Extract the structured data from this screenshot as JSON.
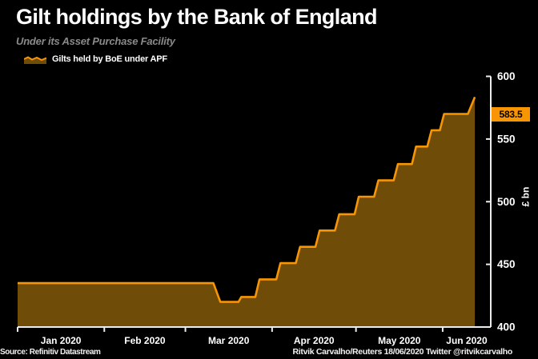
{
  "header": {
    "title": "Gilt holdings by the Bank of England",
    "subtitle": "Under its Asset Purchase Facility"
  },
  "legend": {
    "label": "Gilts held by BoE under APF",
    "marker": "area-sparkline-icon"
  },
  "footer": {
    "source": "Source: Refinitiv Datastream",
    "credit": "Ritvik Carvalho/Reuters 18/06/2020 Twitter @ritvikcarvalho"
  },
  "colors": {
    "background": "#000000",
    "line": "#f79502",
    "fill": "#6f4c08",
    "axis": "#ededed",
    "text": "#ffffff",
    "subtitle": "#8a8a8a",
    "badge_bg": "#f79502",
    "badge_text": "#000000"
  },
  "chart_data": {
    "type": "area",
    "title": "Gilt holdings by the Bank of England",
    "subtitle": "Under its Asset Purchase Facility",
    "ylabel": "£ bn",
    "ylim": [
      400,
      600
    ],
    "y_ticks": [
      400,
      450,
      500,
      550,
      600
    ],
    "y_axis_side": "right",
    "grid": false,
    "legend_position": "top-left",
    "x_unit": "days since 2020-01-01",
    "xlim_days": [
      0,
      169.2
    ],
    "x_tick_days": [
      0,
      31,
      60,
      91,
      121,
      152
    ],
    "x_tick_labels": [
      "Jan 2020",
      "Feb 2020",
      "Mar 2020",
      "Apr 2020",
      "May 2020",
      "Jun 2020"
    ],
    "last_value": 583.5,
    "last_value_label": "583.5",
    "series": [
      {
        "name": "Gilts held by BoE under APF",
        "unit": "£ bn",
        "points_day_value": [
          [
            0,
            435
          ],
          [
            70,
            435
          ],
          [
            72.5,
            420
          ],
          [
            79,
            420
          ],
          [
            80,
            424
          ],
          [
            85,
            424
          ],
          [
            86.5,
            438
          ],
          [
            92.5,
            438
          ],
          [
            94,
            451
          ],
          [
            99.5,
            451
          ],
          [
            101,
            464
          ],
          [
            106.5,
            464
          ],
          [
            108,
            477
          ],
          [
            113.5,
            477
          ],
          [
            115,
            490
          ],
          [
            120.5,
            490
          ],
          [
            122,
            504
          ],
          [
            127.5,
            504
          ],
          [
            129,
            517
          ],
          [
            134.5,
            517
          ],
          [
            136,
            530
          ],
          [
            141,
            530
          ],
          [
            142.5,
            544
          ],
          [
            146.5,
            544
          ],
          [
            148,
            557
          ],
          [
            151,
            557
          ],
          [
            152.5,
            570
          ],
          [
            161,
            570
          ],
          [
            163.5,
            583.5
          ]
        ]
      }
    ]
  }
}
